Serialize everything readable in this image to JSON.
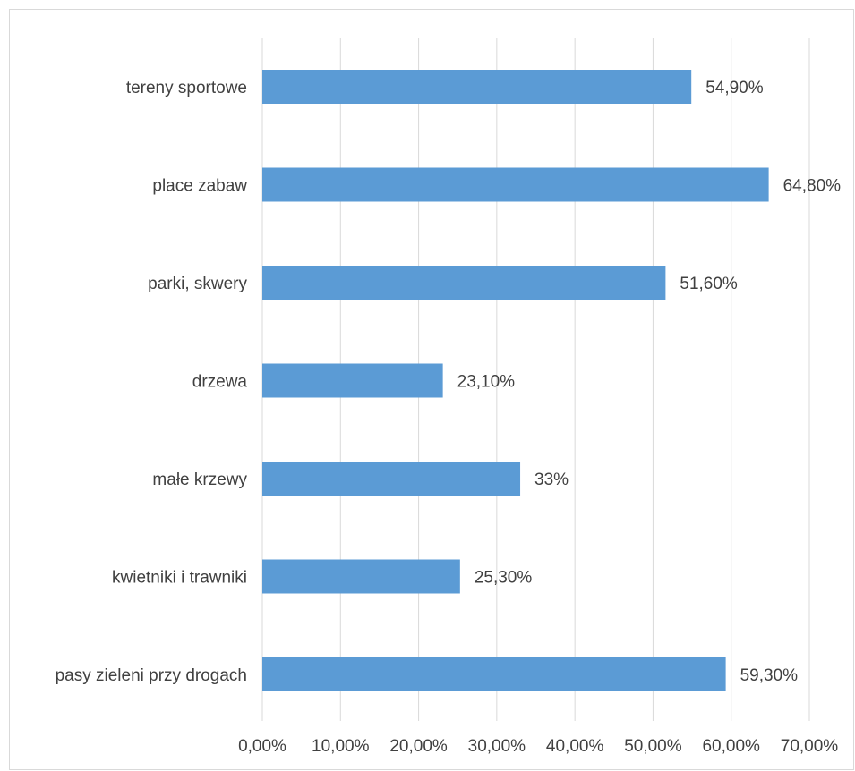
{
  "chart_data": {
    "type": "bar",
    "orientation": "horizontal",
    "title": "",
    "xlabel": "",
    "ylabel": "",
    "categories": [
      "tereny sportowe",
      "place zabaw",
      "parki, skwery",
      "drzewa",
      "małe krzewy",
      "kwietniki i trawniki",
      "pasy zieleni przy drogach"
    ],
    "values": [
      54.9,
      64.8,
      51.6,
      23.1,
      33.0,
      25.3,
      59.3
    ],
    "data_labels": [
      "54,90%",
      "64,80%",
      "51,60%",
      "23,10%",
      "33%",
      "25,30%",
      "59,30%"
    ],
    "x_ticks": [
      0,
      10,
      20,
      30,
      40,
      50,
      60,
      70
    ],
    "x_tick_labels": [
      "0,00%",
      "10,00%",
      "20,00%",
      "30,00%",
      "40,00%",
      "50,00%",
      "60,00%",
      "70,00%"
    ],
    "xlim": [
      0,
      70
    ],
    "grid": "vertical",
    "legend": "none",
    "colors": {
      "bar": "#5b9bd5",
      "grid": "#d9d9d9",
      "text": "#404040"
    }
  }
}
